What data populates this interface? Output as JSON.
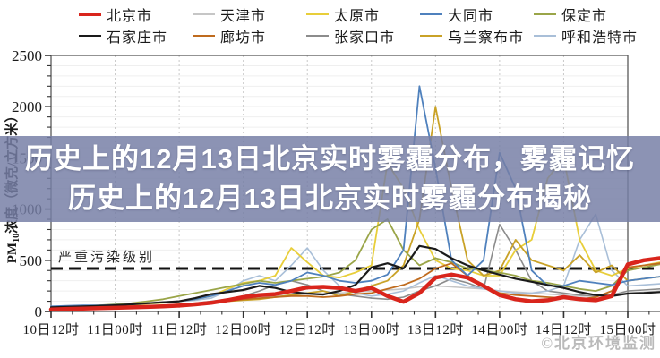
{
  "overlay": {
    "line1": "历史上的12月13日北京实时雾霾分布，雾霾记忆",
    "line2": "历史上的12月13日北京实时雾霾分布揭秘"
  },
  "watermark": {
    "text": "©北京环境监测"
  },
  "chart_data": {
    "type": "line",
    "title": "",
    "ylabel": "PM10浓度（微克/立方米）",
    "ylabel_parts": {
      "prefix": "PM",
      "sub": "10",
      "rest": "浓度（微克/立方米）"
    },
    "ylim": [
      0,
      2500
    ],
    "y_major_ticks": [
      0,
      500,
      1000,
      1500,
      2000,
      2500
    ],
    "y_minor_step": 100,
    "grid": "on",
    "legend_position": "top",
    "threshold": {
      "value": 420,
      "label": "严重污染级别"
    },
    "x_tick_hours": [
      0,
      12,
      24,
      36,
      48,
      60,
      72,
      84,
      96,
      108
    ],
    "x_tick_labels": [
      "10日12时",
      "11日00时",
      "11日12时",
      "12日00时",
      "12日12时",
      "13日00时",
      "13日12时",
      "14日00时",
      "14日12时",
      "15日00时"
    ],
    "x_hours": [
      0,
      3,
      6,
      9,
      12,
      15,
      18,
      21,
      24,
      27,
      30,
      33,
      36,
      39,
      42,
      45,
      48,
      51,
      54,
      57,
      60,
      63,
      66,
      69,
      72,
      75,
      78,
      81,
      84,
      87,
      90,
      93,
      96,
      99,
      102,
      105,
      108,
      111,
      114
    ],
    "legend_rows": [
      [
        "北京市",
        "天津市",
        "太原市",
        "大同市",
        "保定市"
      ],
      [
        "石家庄市",
        "廊坊市",
        "张家口市",
        "乌兰察布市",
        "呼和浩特市"
      ]
    ],
    "draw_order": [
      "天津市",
      "张家口市",
      "呼和浩特市",
      "太原市",
      "乌兰察布市",
      "保定市",
      "廊坊市",
      "大同市",
      "石家庄市",
      "北京市"
    ],
    "series": [
      {
        "name": "北京市",
        "color": "#d9251c",
        "width": 4.5,
        "values": [
          20,
          25,
          28,
          32,
          36,
          40,
          45,
          50,
          58,
          70,
          85,
          110,
          140,
          160,
          170,
          200,
          235,
          240,
          230,
          200,
          230,
          150,
          95,
          180,
          330,
          360,
          330,
          250,
          160,
          120,
          100,
          110,
          140,
          120,
          110,
          150,
          460,
          500,
          520
        ]
      },
      {
        "name": "天津市",
        "color": "#c6c6c6",
        "width": 1.6,
        "values": [
          30,
          33,
          36,
          40,
          44,
          48,
          52,
          58,
          65,
          75,
          90,
          105,
          120,
          135,
          150,
          160,
          170,
          175,
          180,
          190,
          200,
          210,
          220,
          240,
          250,
          240,
          230,
          220,
          200,
          190,
          180,
          170,
          160,
          150,
          150,
          160,
          180,
          190,
          200
        ]
      },
      {
        "name": "太原市",
        "color": "#e8ce3a",
        "width": 1.8,
        "values": [
          30,
          35,
          40,
          45,
          55,
          65,
          75,
          85,
          100,
          120,
          150,
          220,
          280,
          300,
          350,
          620,
          480,
          350,
          330,
          380,
          450,
          1450,
          1200,
          800,
          500,
          420,
          400,
          350,
          350,
          600,
          700,
          1300,
          1500,
          700,
          400,
          350,
          420,
          450,
          480
        ]
      },
      {
        "name": "大同市",
        "color": "#4f81bd",
        "width": 1.8,
        "values": [
          50,
          55,
          60,
          60,
          65,
          70,
          80,
          90,
          100,
          120,
          150,
          200,
          250,
          280,
          260,
          300,
          380,
          350,
          300,
          280,
          300,
          360,
          600,
          2200,
          1400,
          500,
          350,
          500,
          1550,
          1200,
          400,
          250,
          250,
          300,
          280,
          260,
          300,
          320,
          340
        ]
      },
      {
        "name": "保定市",
        "color": "#9aa548",
        "width": 1.8,
        "values": [
          40,
          45,
          50,
          60,
          70,
          80,
          100,
          120,
          150,
          180,
          210,
          240,
          270,
          300,
          280,
          300,
          320,
          340,
          380,
          500,
          800,
          900,
          600,
          450,
          520,
          480,
          420,
          400,
          380,
          350,
          300,
          280,
          250,
          220,
          200,
          250,
          400,
          430,
          460
        ]
      },
      {
        "name": "石家庄市",
        "color": "#1a1a1a",
        "width": 2.2,
        "values": [
          40,
          45,
          50,
          55,
          60,
          70,
          80,
          90,
          100,
          130,
          170,
          190,
          210,
          250,
          230,
          190,
          175,
          165,
          200,
          260,
          430,
          470,
          420,
          640,
          610,
          520,
          450,
          400,
          360,
          320,
          290,
          260,
          230,
          190,
          160,
          150,
          175,
          180,
          190
        ]
      },
      {
        "name": "廊坊市",
        "color": "#bf6b1e",
        "width": 1.8,
        "values": [
          25,
          28,
          30,
          35,
          40,
          45,
          50,
          55,
          60,
          70,
          85,
          100,
          120,
          130,
          140,
          150,
          150,
          140,
          150,
          170,
          180,
          220,
          260,
          320,
          420,
          470,
          350,
          250,
          180,
          160,
          150,
          140,
          130,
          120,
          140,
          200,
          430,
          450,
          470
        ]
      },
      {
        "name": "张家口市",
        "color": "#8c8c8c",
        "width": 1.6,
        "values": [
          30,
          32,
          35,
          40,
          45,
          50,
          55,
          60,
          70,
          80,
          100,
          120,
          150,
          200,
          260,
          300,
          260,
          200,
          170,
          150,
          130,
          120,
          140,
          200,
          250,
          320,
          280,
          220,
          850,
          600,
          300,
          200,
          180,
          160,
          150,
          160,
          200,
          210,
          220
        ]
      },
      {
        "name": "乌兰察布市",
        "color": "#c9a227",
        "width": 1.8,
        "values": [
          30,
          32,
          35,
          38,
          42,
          48,
          55,
          60,
          70,
          80,
          90,
          100,
          110,
          120,
          140,
          160,
          180,
          200,
          150,
          200,
          250,
          300,
          450,
          900,
          2000,
          1200,
          500,
          350,
          400,
          700,
          500,
          450,
          400,
          550,
          380,
          450,
          300,
          320,
          340
        ]
      },
      {
        "name": "呼和浩特市",
        "color": "#a9bfd8",
        "width": 1.6,
        "values": [
          40,
          45,
          50,
          55,
          60,
          70,
          80,
          90,
          100,
          110,
          130,
          200,
          300,
          350,
          300,
          450,
          620,
          400,
          250,
          180,
          150,
          170,
          200,
          280,
          350,
          300,
          250,
          220,
          200,
          180,
          180,
          200,
          250,
          700,
          950,
          400,
          250,
          260,
          270
        ]
      }
    ]
  }
}
